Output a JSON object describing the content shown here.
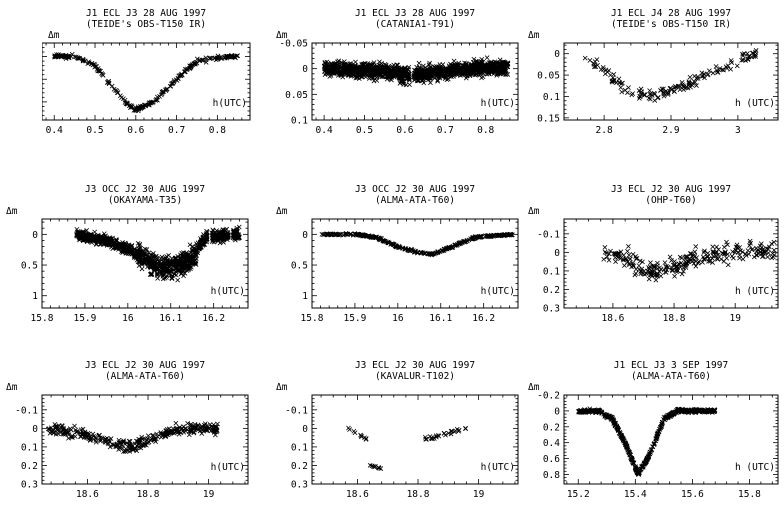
{
  "figure": {
    "ylabel": "Δm",
    "xlabel": "h(UTC)"
  },
  "chart_data": [
    {
      "type": "scatter",
      "title": "J1 ECL J3 28 AUG 1997",
      "subtitle": "(TEIDE's OBS-T150 IR)",
      "ylabel": "Δm",
      "xlabel": "h(UTC)",
      "xlim": [
        0.37,
        0.88
      ],
      "ylim": [
        0.28,
        -0.06
      ],
      "xticks": [
        0.4,
        0.5,
        0.6,
        0.7,
        0.8
      ],
      "yticks": [
        0,
        0.1,
        0.2
      ],
      "x_range": [
        0.4,
        0.85
      ],
      "curve_x": [
        0.4,
        0.45,
        0.5,
        0.55,
        0.58,
        0.6,
        0.62,
        0.65,
        0.7,
        0.75,
        0.8,
        0.85
      ],
      "curve_y": [
        0.0,
        0.0,
        0.04,
        0.15,
        0.21,
        0.235,
        0.22,
        0.19,
        0.1,
        0.02,
        0.005,
        0.0
      ],
      "scatter": 0.008,
      "n_points": 240
    },
    {
      "type": "scatter",
      "title": "J1 ECL J3 28 AUG 1997",
      "subtitle": "(CATANIA1-T91)",
      "ylabel": "Δm",
      "xlabel": "h(UTC)",
      "xlim": [
        0.37,
        0.88
      ],
      "ylim": [
        0.1,
        -0.05
      ],
      "xticks": [
        0.4,
        0.5,
        0.6,
        0.7,
        0.8
      ],
      "yticks": [
        -0.05,
        0,
        0.05,
        0.1
      ],
      "ytick_labels": [
        "-0.05",
        "0",
        "0.05",
        "0.1"
      ],
      "x_range": [
        0.4,
        0.855
      ],
      "gaps": [
        [
          0.612,
          0.622
        ]
      ],
      "curve_x": [
        0.4,
        0.5,
        0.55,
        0.61,
        0.62,
        0.7,
        0.78,
        0.855
      ],
      "curve_y": [
        0.0,
        0.003,
        0.005,
        0.015,
        0.012,
        0.006,
        0.0,
        -0.002
      ],
      "scatter": 0.014,
      "n_points": 1400
    },
    {
      "type": "scatter",
      "title": "J1 ECL J4 28 AUG 1997",
      "subtitle": "(TEIDE's OBS-T150 IR)",
      "ylabel": "Δm",
      "xlabel": "h (UTC)",
      "xlim": [
        2.74,
        3.06
      ],
      "ylim": [
        0.155,
        -0.025
      ],
      "xticks": [
        2.8,
        2.9,
        3
      ],
      "yticks": [
        0,
        0.05,
        0.1,
        0.15
      ],
      "x_range": [
        2.77,
        3.03
      ],
      "curve_x": [
        2.77,
        2.8,
        2.83,
        2.86,
        2.88,
        2.92,
        2.96,
        3.0,
        3.03
      ],
      "curve_y": [
        0.005,
        0.04,
        0.08,
        0.097,
        0.095,
        0.075,
        0.045,
        0.015,
        0.0
      ],
      "scatter": 0.012,
      "n_points": 150
    },
    {
      "type": "scatter",
      "title": "J3 OCC J2 30 AUG 1997",
      "subtitle": "(OKAYAMA-T35)",
      "ylabel": "Δm",
      "xlabel": "h(UTC)",
      "xlim": [
        15.8,
        16.28
      ],
      "ylim": [
        1.2,
        -0.25
      ],
      "xticks": [
        15.8,
        15.9,
        16,
        16.1,
        16.2
      ],
      "yticks": [
        0,
        0.5,
        1
      ],
      "x_range": [
        15.88,
        16.26
      ],
      "gaps": [
        [
          16.185,
          16.195
        ],
        [
          16.235,
          16.245
        ]
      ],
      "curve_x": [
        15.88,
        15.95,
        16.0,
        16.05,
        16.08,
        16.12,
        16.15,
        16.18,
        16.26
      ],
      "curve_y": [
        0.0,
        0.1,
        0.25,
        0.45,
        0.55,
        0.5,
        0.4,
        0.05,
        0.0
      ],
      "scatter": 0.08,
      "n_points": 1200
    },
    {
      "type": "scatter",
      "title": "J3 OCC J2 30 AUG 1997",
      "subtitle": "(ALMA-ATA-T60)",
      "ylabel": "Δm",
      "xlabel": "h(UTC)",
      "xlim": [
        15.8,
        16.28
      ],
      "ylim": [
        1.2,
        -0.25
      ],
      "xticks": [
        15.8,
        15.9,
        16,
        16.1,
        16.2
      ],
      "yticks": [
        0,
        0.5,
        1
      ],
      "x_range": [
        15.82,
        16.27
      ],
      "curve_x": [
        15.82,
        15.9,
        15.95,
        16.0,
        16.05,
        16.08,
        16.12,
        16.18,
        16.27
      ],
      "curve_y": [
        0.0,
        0.0,
        0.05,
        0.2,
        0.3,
        0.32,
        0.22,
        0.05,
        0.0
      ],
      "scatter": 0.015,
      "n_points": 320
    },
    {
      "type": "scatter",
      "title": "J3 ECL J2 30 AUG 1997",
      "subtitle": "(OHP-T60)",
      "ylabel": "Δm",
      "xlabel": "h (UTC)",
      "xlim": [
        18.44,
        19.14
      ],
      "ylim": [
        0.3,
        -0.18
      ],
      "xticks": [
        18.6,
        18.8,
        19
      ],
      "yticks": [
        -0.1,
        0,
        0.1,
        0.2,
        0.3
      ],
      "x_range": [
        18.57,
        19.13
      ],
      "curve_x": [
        18.57,
        18.65,
        18.72,
        18.78,
        18.85,
        18.95,
        19.05,
        19.13
      ],
      "curve_y": [
        0.0,
        0.04,
        0.1,
        0.09,
        0.05,
        0.01,
        -0.01,
        0.0
      ],
      "scatter": 0.05,
      "n_points": 260
    },
    {
      "type": "scatter",
      "title": "J3 ECL J2 30 AUG 1997",
      "subtitle": "(ALMA-ATA-T60)",
      "ylabel": "Δm",
      "xlabel": "h(UTC)",
      "xlim": [
        18.45,
        19.13
      ],
      "ylim": [
        0.3,
        -0.18
      ],
      "xticks": [
        18.6,
        18.8,
        19
      ],
      "yticks": [
        -0.1,
        0,
        0.1,
        0.2,
        0.3
      ],
      "x_range": [
        18.47,
        19.03
      ],
      "curve_x": [
        18.47,
        18.55,
        18.62,
        18.7,
        18.75,
        18.8,
        18.87,
        18.95,
        19.03
      ],
      "curve_y": [
        0.0,
        0.02,
        0.05,
        0.09,
        0.1,
        0.06,
        0.02,
        0.0,
        0.0
      ],
      "scatter": 0.03,
      "n_points": 330
    },
    {
      "type": "scatter",
      "title": "J3 ECL J2 30 AUG 1997",
      "subtitle": "(KAVALUR-T102)",
      "ylabel": "Δm",
      "xlabel": "h(UTC)",
      "xlim": [
        18.45,
        19.13
      ],
      "ylim": [
        0.3,
        -0.18
      ],
      "xticks": [
        18.6,
        18.8,
        19
      ],
      "yticks": [
        -0.1,
        0,
        0.1,
        0.2,
        0.3
      ],
      "segments": [
        {
          "x_range": [
            18.57,
            18.63
          ],
          "curve_x": [
            18.57,
            18.63
          ],
          "curve_y": [
            0.0,
            0.06
          ],
          "n_points": 10
        },
        {
          "x_range": [
            18.64,
            18.68
          ],
          "curve_x": [
            18.64,
            18.68
          ],
          "curve_y": [
            0.2,
            0.215
          ],
          "n_points": 9
        },
        {
          "x_range": [
            18.82,
            18.96
          ],
          "curve_x": [
            18.82,
            18.96
          ],
          "curve_y": [
            0.06,
            0.0
          ],
          "n_points": 26
        }
      ],
      "scatter": 0.008
    },
    {
      "type": "scatter",
      "title": "J1 ECL J3 3 SEP 1997",
      "subtitle": "(ALMA-ATA-T60)",
      "ylabel": "Δm",
      "xlabel": "h (UTC)",
      "xlim": [
        15.15,
        15.9
      ],
      "ylim": [
        0.92,
        -0.2
      ],
      "xticks": [
        15.2,
        15.4,
        15.6,
        15.8
      ],
      "yticks": [
        -0.2,
        0,
        0.2,
        0.4,
        0.6,
        0.8
      ],
      "x_range": [
        15.2,
        15.68
      ],
      "curve_x": [
        15.2,
        15.27,
        15.32,
        15.37,
        15.41,
        15.45,
        15.5,
        15.55,
        15.6,
        15.68
      ],
      "curve_y": [
        0.0,
        0.0,
        0.1,
        0.45,
        0.8,
        0.55,
        0.1,
        0.0,
        0.0,
        0.0
      ],
      "scatter": 0.02,
      "n_points": 520
    }
  ]
}
